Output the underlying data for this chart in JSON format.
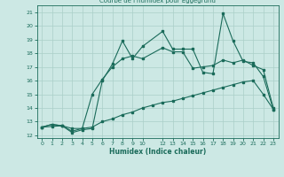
{
  "title": "Courbe de l'humidex pour Eggegrund",
  "xlabel": "Humidex (Indice chaleur)",
  "bg_color": "#cce8e4",
  "line_color": "#1a6b5a",
  "grid_color": "#aacfc8",
  "xlim": [
    -0.5,
    23.5
  ],
  "ylim": [
    11.8,
    21.5
  ],
  "yticks": [
    12,
    13,
    14,
    15,
    16,
    17,
    18,
    19,
    20,
    21
  ],
  "xticks": [
    0,
    1,
    2,
    3,
    4,
    5,
    6,
    7,
    8,
    9,
    10,
    12,
    13,
    14,
    15,
    16,
    17,
    18,
    19,
    20,
    21,
    22,
    23
  ],
  "series1_x": [
    0,
    1,
    2,
    3,
    4,
    5,
    6,
    7,
    8,
    9,
    10,
    12,
    13,
    14,
    15,
    16,
    17,
    18,
    19,
    20,
    21,
    22,
    23
  ],
  "series1_y": [
    12.6,
    12.8,
    12.7,
    12.2,
    12.4,
    12.5,
    16.0,
    17.2,
    18.9,
    17.6,
    18.5,
    19.6,
    18.3,
    18.3,
    18.3,
    16.6,
    16.5,
    20.9,
    18.9,
    17.4,
    17.3,
    16.3,
    13.9
  ],
  "series2_x": [
    0,
    1,
    2,
    3,
    4,
    5,
    6,
    7,
    8,
    9,
    10,
    12,
    13,
    14,
    15,
    16,
    17,
    18,
    19,
    20,
    21,
    22,
    23
  ],
  "series2_y": [
    12.6,
    12.8,
    12.7,
    12.3,
    12.5,
    15.0,
    16.1,
    17.0,
    17.6,
    17.8,
    17.6,
    18.4,
    18.1,
    18.1,
    16.9,
    17.0,
    17.1,
    17.5,
    17.3,
    17.5,
    17.1,
    16.8,
    14.0
  ],
  "series3_x": [
    0,
    1,
    2,
    3,
    4,
    5,
    6,
    7,
    8,
    9,
    10,
    11,
    12,
    13,
    14,
    15,
    16,
    17,
    18,
    19,
    20,
    21,
    22,
    23
  ],
  "series3_y": [
    12.6,
    12.65,
    12.7,
    12.5,
    12.5,
    12.6,
    13.0,
    13.2,
    13.5,
    13.7,
    14.0,
    14.2,
    14.4,
    14.5,
    14.7,
    14.9,
    15.1,
    15.3,
    15.5,
    15.7,
    15.9,
    16.0,
    15.0,
    13.9
  ]
}
